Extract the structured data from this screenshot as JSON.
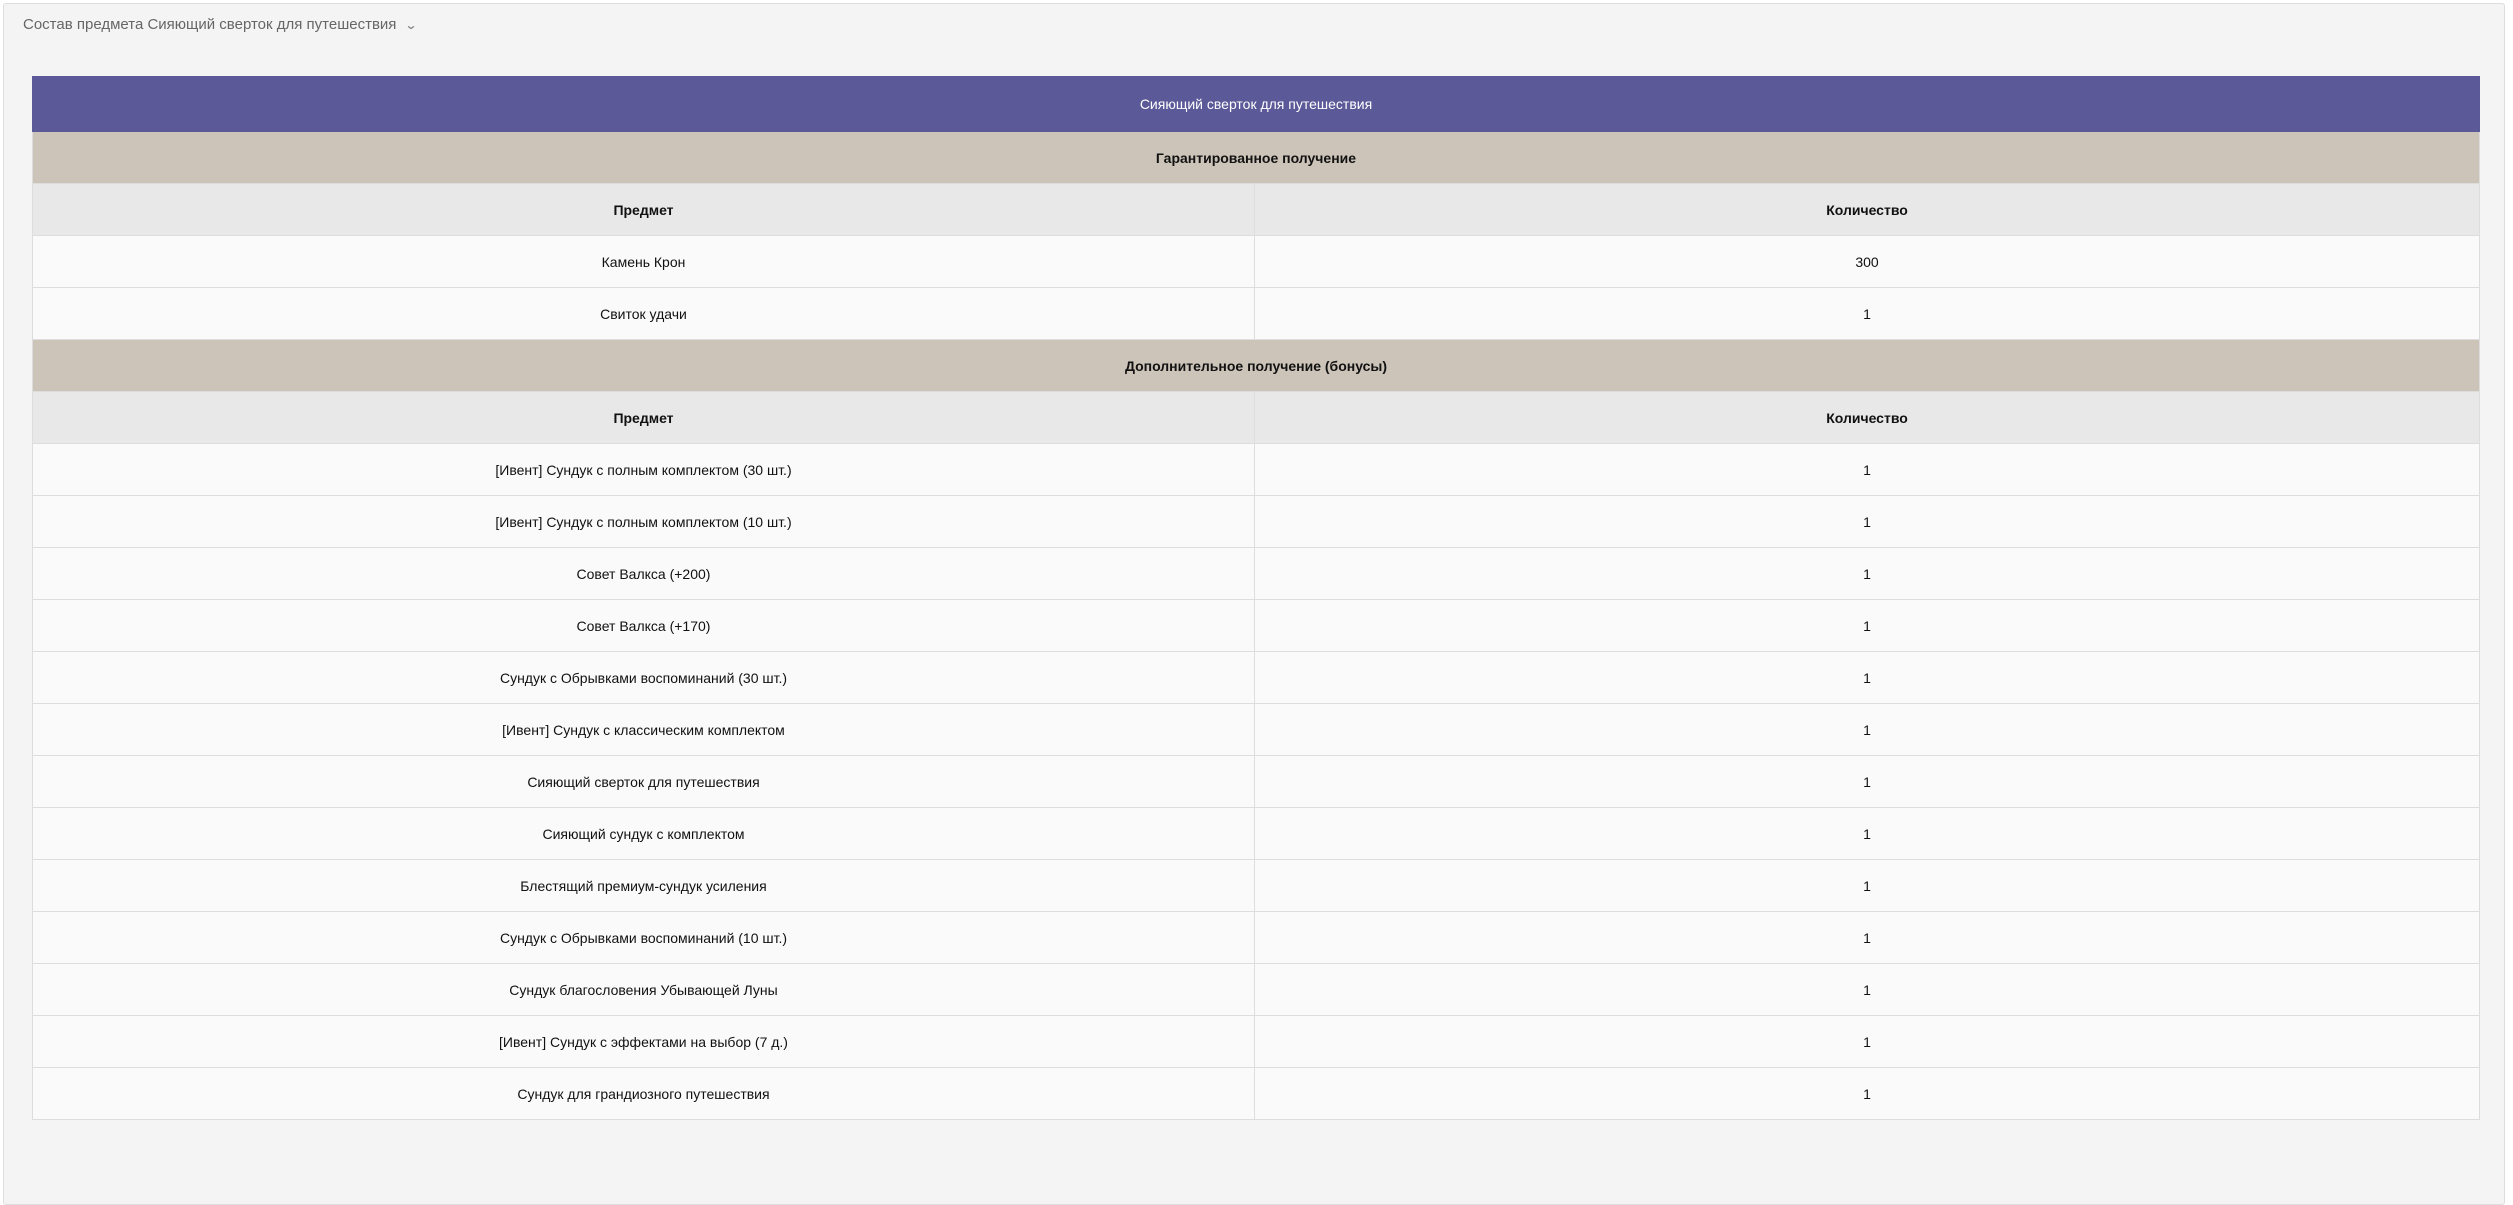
{
  "header": {
    "title": "Состав предмета Сияющий сверток для путешествия",
    "toggle_icon": "chevron-down-icon"
  },
  "table": {
    "title": "Сияющий сверток для путешествия",
    "colors": {
      "title_bg": "#5b5998",
      "section_bg": "#ccc4b9",
      "header_bg": "#e8e8e8"
    },
    "sections": [
      {
        "name": "Гарантированное получение",
        "columns": [
          "Предмет",
          "Количество"
        ],
        "rows": [
          [
            "Камень Крон",
            "300"
          ],
          [
            "Свиток удачи",
            "1"
          ]
        ]
      },
      {
        "name": "Дополнительное получение (бонусы)",
        "columns": [
          "Предмет",
          "Количество"
        ],
        "rows": [
          [
            "[Ивент] Сундук с полным комплектом (30 шт.)",
            "1"
          ],
          [
            "[Ивент] Сундук с полным комплектом (10 шт.)",
            "1"
          ],
          [
            "Совет Валкса (+200)",
            "1"
          ],
          [
            "Совет Валкса (+170)",
            "1"
          ],
          [
            "Сундук с Обрывками воспоминаний (30 шт.)",
            "1"
          ],
          [
            "[Ивент] Сундук с классическим комплектом",
            "1"
          ],
          [
            "Сияющий сверток для путешествия",
            "1"
          ],
          [
            "Сияющий сундук с комплектом",
            "1"
          ],
          [
            "Блестящий премиум-сундук усиления",
            "1"
          ],
          [
            "Сундук с Обрывками воспоминаний (10 шт.)",
            "1"
          ],
          [
            "Сундук благословения Убывающей Луны",
            "1"
          ],
          [
            "[Ивент] Сундук с эффектами на выбор (7 д.)",
            "1"
          ],
          [
            "Сундук для грандиозного путешествия",
            "1"
          ]
        ]
      }
    ]
  }
}
